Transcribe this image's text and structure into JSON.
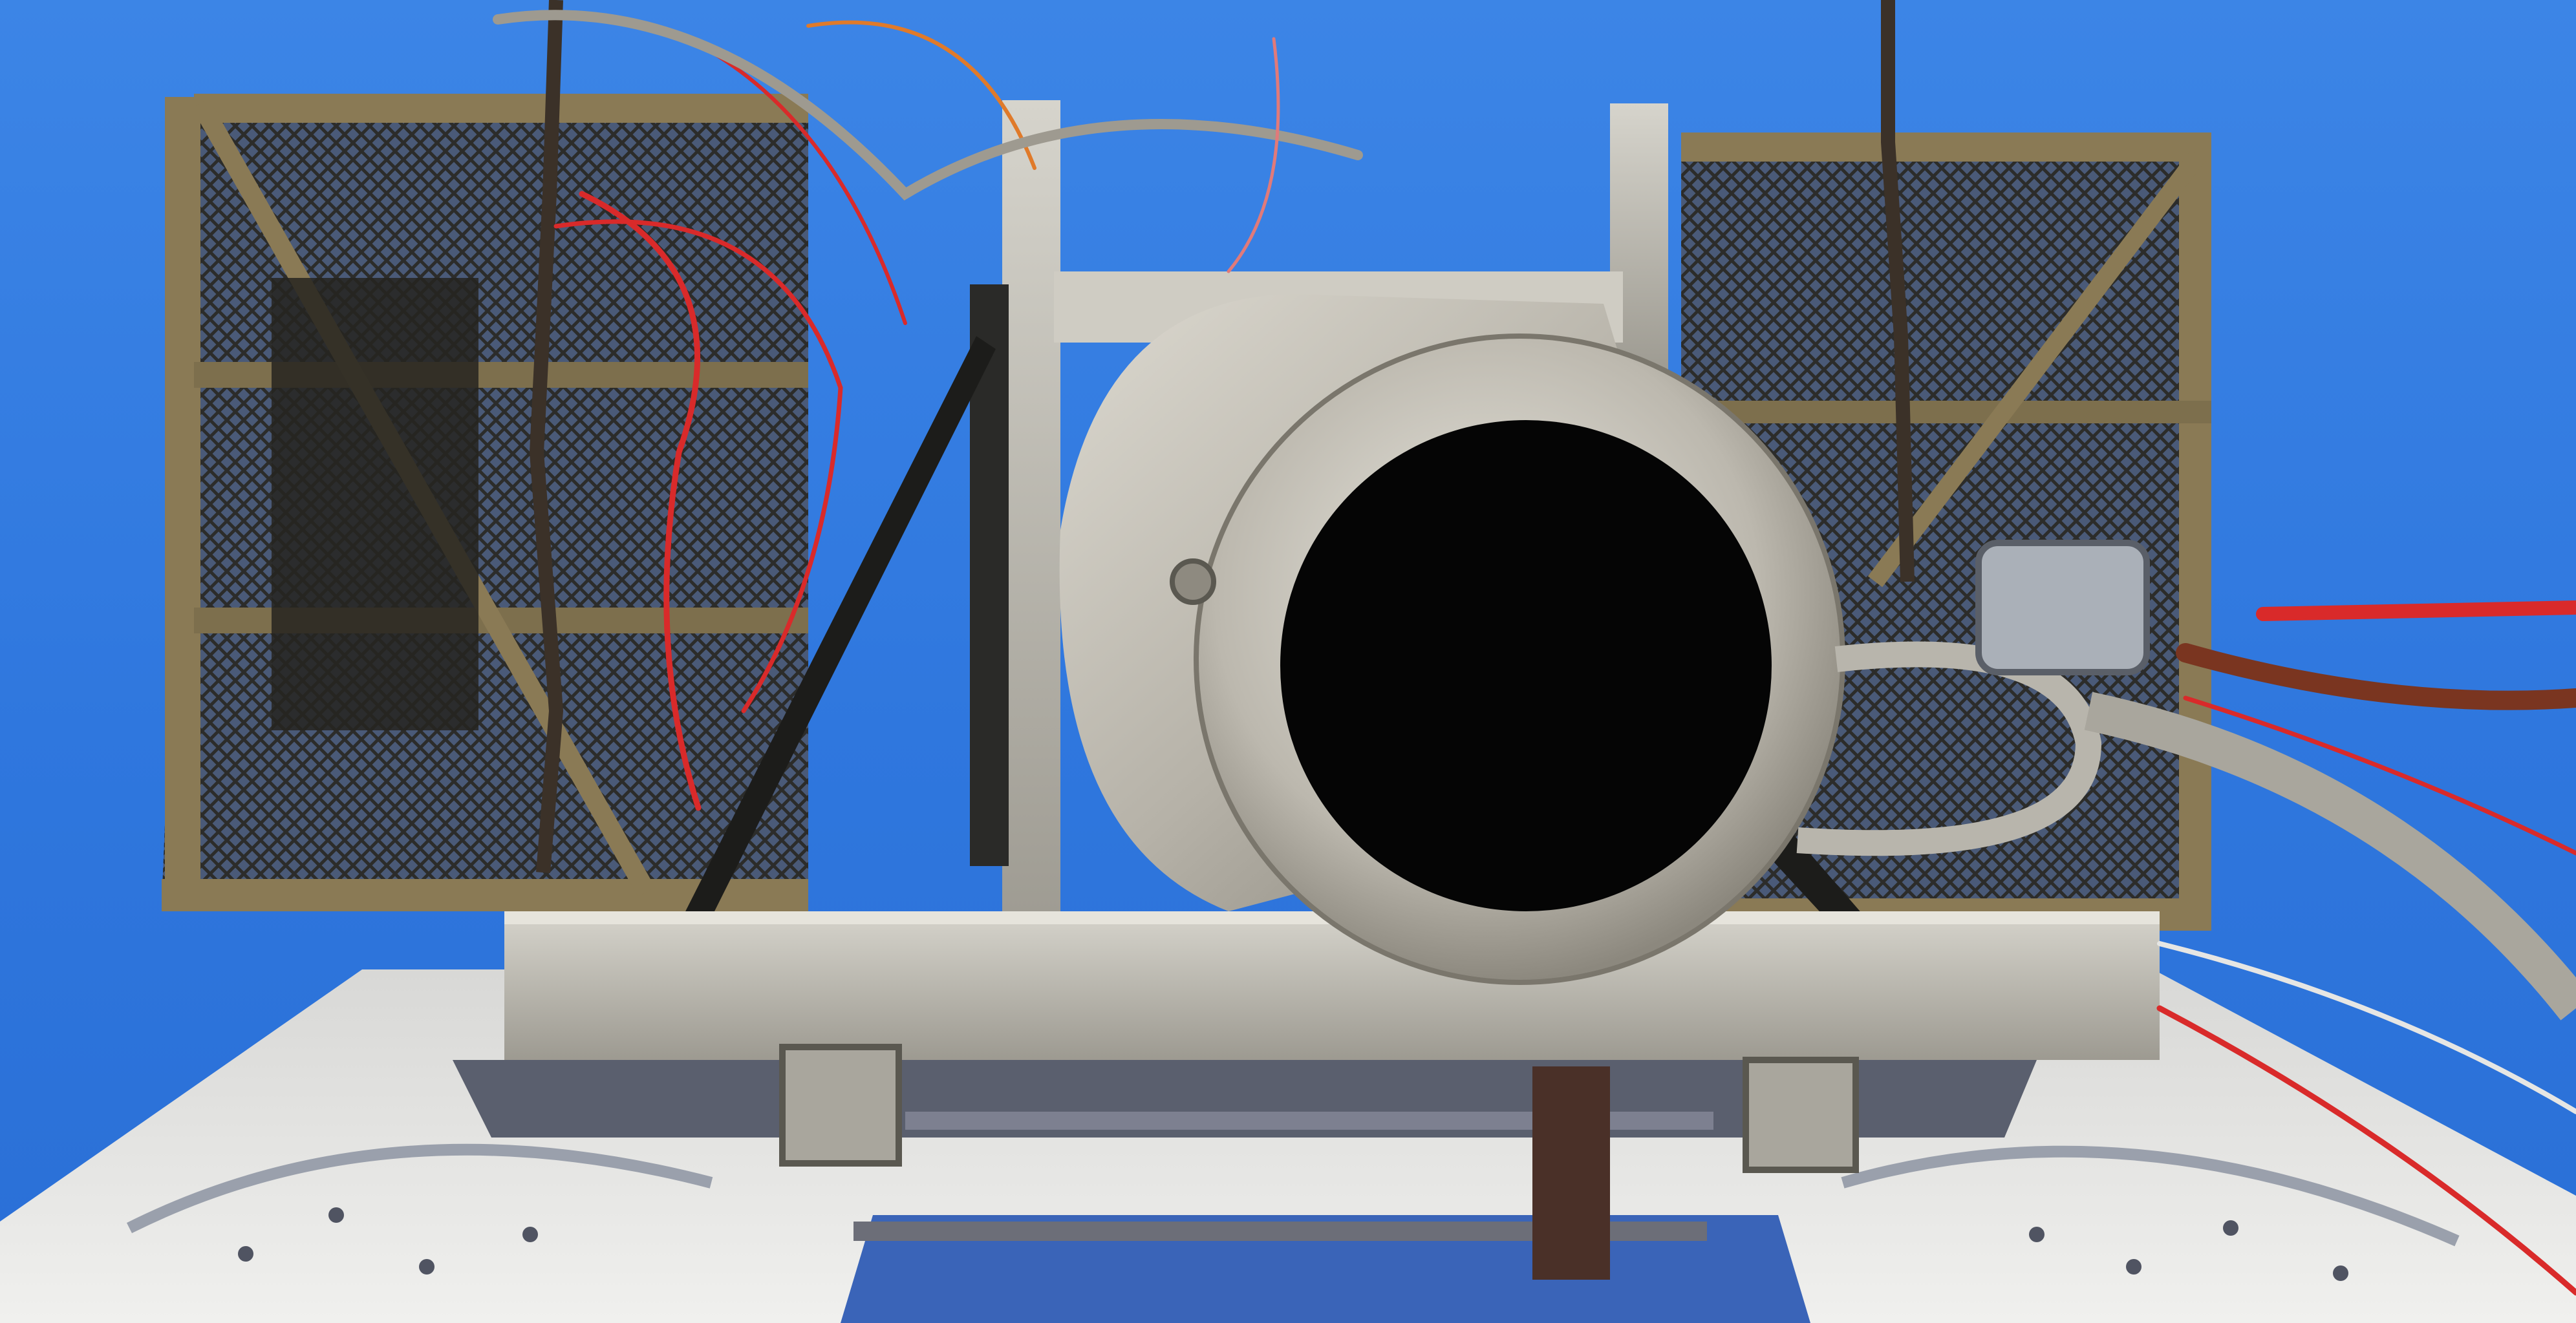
{
  "image": {
    "alt": "",
    "colors": {
      "sky": "#2f77de",
      "metal_light": "#c8c5bc",
      "metal_mid": "#9e9a90",
      "metal_dark": "#6d6a62",
      "cage_frame": "#8a7a55",
      "cage_mesh": "#3a3a36",
      "bore": "#050505",
      "wire_red": "#d92a2a",
      "wire_orange": "#e07a2a",
      "chain": "#3b3128",
      "tower_white": "#e6e6e4",
      "shadow": "#2d3340"
    },
    "objects": [
      {
        "name": "cylindrical-barrel"
      },
      {
        "name": "mesh-cage-left"
      },
      {
        "name": "mesh-cage-right"
      },
      {
        "name": "aluminum-frame"
      },
      {
        "name": "hanging-chain"
      },
      {
        "name": "tower-platform"
      },
      {
        "name": "braided-hose"
      },
      {
        "name": "wires"
      }
    ]
  }
}
